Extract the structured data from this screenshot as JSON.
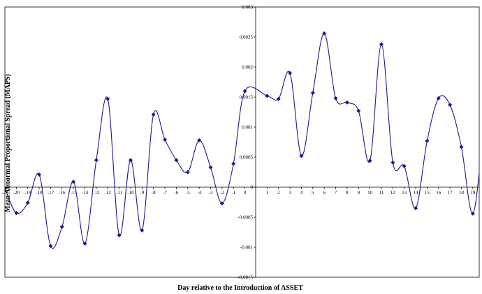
{
  "chart_data": {
    "type": "line",
    "title": "",
    "xlabel": "Day relative to the Introduction of ASSET",
    "ylabel": "Mean Abnormal Proportional Spread (MAPS)",
    "xlim": [
      -21,
      20
    ],
    "ylim": [
      -0.0015,
      0.003
    ],
    "x_ticks": [
      "-21",
      "-20",
      "-19",
      "-18",
      "-17",
      "-16",
      "-15",
      "-14",
      "-13",
      "-12",
      "-11",
      "-10",
      "-9",
      "-8",
      "-7",
      "-6",
      "-5",
      "-4",
      "-3",
      "-2",
      "-1",
      "0",
      "1",
      "2",
      "3",
      "4",
      "5",
      "6",
      "7",
      "8",
      "9",
      "10",
      "11",
      "12",
      "13",
      "14",
      "15",
      "16",
      "17",
      "18",
      "19",
      "20"
    ],
    "y_ticks": [
      "-0.0015",
      "-0.001",
      "-0.0005",
      "0",
      "0.0005",
      "0.001",
      "0.0015",
      "0.002",
      "0.0025",
      "0.003"
    ],
    "grid": false,
    "legend": "none",
    "color": "#1a1a8c",
    "series": [
      {
        "x": [
          -21,
          -20,
          -19,
          -18,
          -17,
          -16,
          -15,
          -14,
          -13,
          -12,
          -11,
          -10,
          -9,
          -8,
          -7,
          -6,
          -5,
          -4,
          -3,
          -2,
          -1,
          0,
          1,
          2,
          3,
          4,
          5,
          6,
          7,
          8,
          9,
          10,
          11,
          12,
          13,
          14,
          15,
          16,
          17,
          18,
          19,
          20,
          21
        ],
        "values": [
          -2e-05,
          -0.00043,
          -0.00026,
          0.00021,
          -0.00098,
          -0.00066,
          9e-05,
          -0.00094,
          0.00045,
          0.00147,
          -0.0008,
          0.00045,
          -0.00072,
          0.00121,
          0.00079,
          0.00045,
          0.00025,
          0.00078,
          0.00033,
          -0.00027,
          0.00039,
          0.0016,
          0.00152,
          0.00147,
          0.0019,
          0.00052,
          0.00157,
          0.00256,
          0.00148,
          0.00141,
          0.00127,
          0.00044,
          0.00238,
          0.00041,
          0.00035,
          -0.00035,
          0.00077,
          0.00148,
          0.00137,
          0.00067,
          -0.00044,
          0.0009,
          0.00135
        ]
      }
    ]
  }
}
